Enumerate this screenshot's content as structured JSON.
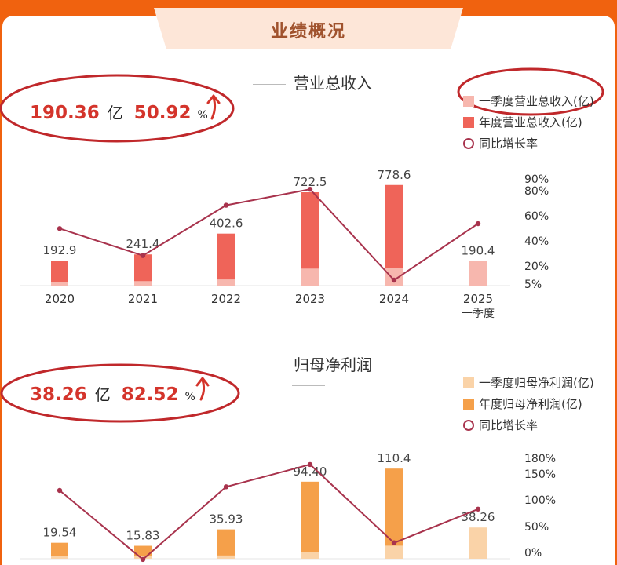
{
  "header": {
    "title": "业绩概况"
  },
  "colors": {
    "background_orange": "#f0620f",
    "q1_revenue": "#f7b7ae",
    "annual_revenue": "#ef6459",
    "q1_profit": "#fad3a8",
    "annual_profit": "#f5a04a",
    "growth_line": "#a8334d",
    "highlight_red": "#d4342b",
    "annotation_circle": "#c0282b"
  },
  "revenue_section": {
    "title": "营业总收入",
    "kpi": {
      "value": "190.36",
      "unit": "亿",
      "growth": "50.92",
      "growth_unit": "%"
    },
    "legend": [
      "一季度营业总收入(亿)",
      "年度营业总收入(亿)",
      "同比增长率"
    ]
  },
  "profit_section": {
    "title": "归母净利润",
    "kpi": {
      "value": "38.26",
      "unit": "亿",
      "growth": "82.52",
      "growth_unit": "%"
    },
    "legend": [
      "一季度归母净利润(亿)",
      "年度归母净利润(亿)",
      "同比增长率"
    ]
  },
  "chart_data": [
    {
      "type": "bar",
      "title": "营业总收入",
      "categories": [
        "2020",
        "2021",
        "2022",
        "2023",
        "2024",
        "2025"
      ],
      "category_sublabels": [
        "",
        "",
        "",
        "",
        "",
        "一季度"
      ],
      "series": [
        {
          "name": "一季度营业总收入(亿)",
          "values": [
            25,
            35,
            48,
            132,
            135,
            190.4
          ]
        },
        {
          "name": "年度营业总收入(亿)",
          "values": [
            192.9,
            241.4,
            402.6,
            722.5,
            778.6,
            null
          ]
        },
        {
          "name": "同比增长率",
          "type": "line",
          "values": [
            47,
            25,
            66,
            79,
            5,
            51
          ]
        }
      ],
      "bar_labels": [
        "192.9",
        "241.4",
        "402.6",
        "722.5",
        "778.6",
        "190.4"
      ],
      "left_ylim": [
        0,
        850
      ],
      "right_axis": {
        "ticks": [
          "90%",
          "80%",
          "60%",
          "40%",
          "20%",
          "5%"
        ]
      },
      "grid": false,
      "legend": "top-right"
    },
    {
      "type": "bar",
      "title": "归母净利润",
      "categories": [
        "2020",
        "2021",
        "2022",
        "2023",
        "2024",
        "2025"
      ],
      "series": [
        {
          "name": "一季度归母净利润(亿)",
          "values": [
            3,
            3,
            4,
            8,
            16,
            38.26
          ]
        },
        {
          "name": "年度归母净利润(亿)",
          "values": [
            19.54,
            15.83,
            35.93,
            94.4,
            110.4,
            null
          ]
        },
        {
          "name": "同比增长率",
          "type": "line",
          "values": [
            118,
            -15,
            125,
            168,
            17,
            82
          ]
        }
      ],
      "bar_labels": [
        "19.54",
        "15.83",
        "35.93",
        "94.40",
        "110.4",
        "38.26"
      ],
      "left_ylim": [
        0,
        125
      ],
      "right_axis": {
        "ticks": [
          "180%",
          "150%",
          "100%",
          "50%",
          "0%"
        ]
      },
      "grid": false,
      "legend": "top-right"
    }
  ]
}
